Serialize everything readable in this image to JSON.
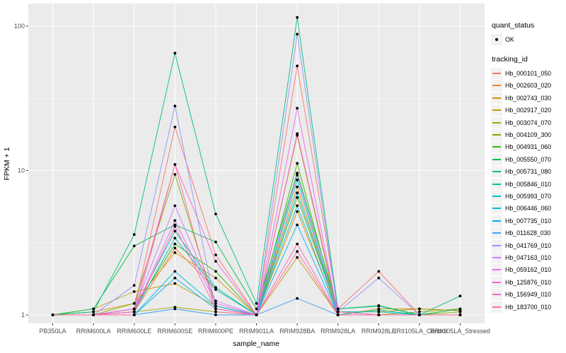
{
  "legend": {
    "quant_status_title": "quant_status",
    "ok_label": "OK",
    "tracking_id_title": "tracking_id"
  },
  "chart_data": {
    "type": "line",
    "title": "",
    "xlabel": "sample_name",
    "ylabel": "FPKM + 1",
    "yscale": "log10",
    "ylim": [
      0.9,
      130
    ],
    "yticks": [
      1,
      10,
      100
    ],
    "ytick_labels": [
      "1",
      "10",
      "100"
    ],
    "grid": "on",
    "legend_position": "right",
    "panel_bg": "#EBEBEB",
    "grid_color": "#FFFFFF",
    "tick_text_color": "#4D4D4D",
    "point_color": "#000000",
    "point_legend": {
      "title": "quant_status",
      "label": "OK"
    },
    "series_legend_title": "tracking_id",
    "categories": [
      "PB350LA",
      "RRIM600LA",
      "RRIM600LE",
      "RRIM600SE",
      "RRIM600PE",
      "RRIM901LA",
      "RRIM928BA",
      "RRIM928LA",
      "RRIM928LE",
      "RRII105LA_Control",
      "RRII105LA_Stressed"
    ],
    "series": [
      {
        "name": "Hb_000101_050",
        "color": "#F8766D",
        "values": [
          1.0,
          1.0,
          1.1,
          20,
          2.6,
          1.0,
          53,
          1.1,
          2.0,
          1.0,
          1.0
        ]
      },
      {
        "name": "Hb_002603_020",
        "color": "#EA8331",
        "values": [
          1.0,
          1.0,
          1.05,
          2.9,
          1.5,
          1.0,
          7.7,
          1.0,
          1.0,
          1.0,
          1.0
        ]
      },
      {
        "name": "Hb_002743_030",
        "color": "#D89000",
        "values": [
          1.0,
          1.05,
          1.2,
          2.7,
          1.8,
          1.0,
          5.2,
          1.05,
          1.05,
          1.1,
          1.07
        ]
      },
      {
        "name": "Hb_002917_020",
        "color": "#C09B00",
        "values": [
          1.0,
          1.1,
          1.45,
          1.65,
          1.15,
          1.0,
          2.5,
          1.0,
          1.1,
          1.1,
          1.07
        ]
      },
      {
        "name": "Hb_003074_070",
        "color": "#A3A500",
        "values": [
          1.0,
          1.0,
          1.05,
          1.13,
          1.05,
          1.0,
          17.5,
          1.0,
          1.0,
          1.05,
          1.1
        ]
      },
      {
        "name": "Hb_004109_300",
        "color": "#7CAE00",
        "values": [
          1.0,
          1.0,
          1.2,
          9.4,
          1.15,
          1.0,
          6.5,
          1.05,
          1.0,
          1.0,
          1.05
        ]
      },
      {
        "name": "Hb_004931_060",
        "color": "#39B600",
        "values": [
          1.0,
          1.0,
          1.1,
          3.1,
          2.0,
          1.0,
          11.2,
          1.0,
          1.0,
          1.0,
          1.0
        ]
      },
      {
        "name": "Hb_005550_070",
        "color": "#00BB4E",
        "values": [
          1.0,
          1.1,
          3.0,
          4.2,
          3.2,
          1.1,
          9.6,
          1.1,
          1.16,
          1.0,
          1.1
        ]
      },
      {
        "name": "Hb_005731_080",
        "color": "#00BF7D",
        "values": [
          1.0,
          1.05,
          3.6,
          65,
          5.0,
          1.2,
          115,
          1.1,
          1.15,
          1.0,
          1.35
        ]
      },
      {
        "name": "Hb_005846_010",
        "color": "#00C1A3",
        "values": [
          1.0,
          1.0,
          1.1,
          3.8,
          1.55,
          1.0,
          8.6,
          1.0,
          1.08,
          1.0,
          1.0
        ]
      },
      {
        "name": "Hb_005993_070",
        "color": "#00BFC4",
        "values": [
          1.0,
          1.0,
          1.05,
          3.4,
          1.5,
          1.0,
          7.0,
          1.05,
          1.05,
          1.0,
          1.0
        ]
      },
      {
        "name": "Hb_006446_060",
        "color": "#00BAE0",
        "values": [
          1.0,
          1.0,
          1.0,
          2.0,
          1.15,
          1.0,
          5.7,
          1.0,
          1.0,
          1.0,
          1.0
        ]
      },
      {
        "name": "Hb_007735_010",
        "color": "#00B0F6",
        "values": [
          1.0,
          1.0,
          1.0,
          1.8,
          1.1,
          1.0,
          4.2,
          1.0,
          1.0,
          1.0,
          1.0
        ]
      },
      {
        "name": "Hb_011628_030",
        "color": "#35A2FF",
        "values": [
          1.0,
          1.0,
          1.0,
          1.1,
          1.0,
          1.0,
          1.3,
          1.0,
          1.0,
          1.0,
          1.0
        ]
      },
      {
        "name": "Hb_041769_010",
        "color": "#9590FF",
        "values": [
          1.0,
          1.0,
          1.6,
          28,
          1.1,
          1.0,
          88,
          1.05,
          1.8,
          1.0,
          1.0
        ]
      },
      {
        "name": "Hb_047163_010",
        "color": "#C77CFF",
        "values": [
          1.0,
          1.0,
          1.1,
          5.7,
          1.25,
          1.0,
          9.3,
          1.0,
          1.0,
          1.0,
          1.0
        ]
      },
      {
        "name": "Hb_059162_010",
        "color": "#E76BF3",
        "values": [
          1.0,
          1.0,
          1.05,
          4.5,
          1.2,
          1.0,
          27,
          1.0,
          1.0,
          1.0,
          1.0
        ]
      },
      {
        "name": "Hb_125876_010",
        "color": "#FA62DB",
        "values": [
          1.0,
          1.0,
          1.1,
          11,
          2.35,
          1.0,
          18,
          1.05,
          1.0,
          1.0,
          1.0
        ]
      },
      {
        "name": "Hb_156949_010",
        "color": "#FF62BC",
        "values": [
          1.0,
          1.0,
          1.05,
          4.1,
          1.1,
          1.0,
          3.1,
          1.0,
          1.0,
          1.0,
          1.0
        ]
      },
      {
        "name": "Hb_183700_010",
        "color": "#FF6A98",
        "values": [
          1.0,
          1.0,
          1.0,
          11,
          1.05,
          1.0,
          2.75,
          1.0,
          1.0,
          1.0,
          1.0
        ]
      }
    ]
  }
}
